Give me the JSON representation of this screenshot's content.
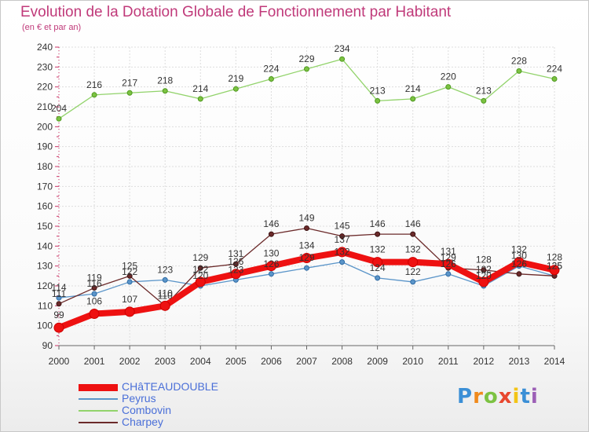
{
  "header": {
    "title": "Evolution de la Dotation Globale de Fonctionnement par Habitant",
    "subtitle": "(en € et par an)"
  },
  "logo": {
    "letters": [
      "P",
      "r",
      "o",
      "x",
      "i",
      "t",
      "i"
    ],
    "colors": [
      "#3b8fd6",
      "#f08a1c",
      "#7cc242",
      "#e8472f",
      "#f3c417",
      "#3b8fd6",
      "#9c5fb6"
    ]
  },
  "chart_data": {
    "type": "line",
    "title": "Evolution de la Dotation Globale de Fonctionnement par Habitant",
    "subtitle": "(en € et par an)",
    "xlabel": "",
    "ylabel": "",
    "ylim": [
      90,
      240
    ],
    "yticks": [
      90,
      100,
      110,
      120,
      130,
      140,
      150,
      160,
      170,
      180,
      190,
      200,
      210,
      220,
      230,
      240
    ],
    "categories": [
      "2000",
      "2001",
      "2002",
      "2003",
      "2004",
      "2005",
      "2006",
      "2007",
      "2008",
      "2009",
      "2010",
      "2011",
      "2012",
      "2013",
      "2014"
    ],
    "grid": true,
    "legend_position": "bottom-left",
    "series": [
      {
        "name": "CHâTEAUDOUBLE",
        "color": "#ee1111",
        "values": [
          99,
          106,
          107,
          110,
          122,
          126,
          130,
          134,
          137,
          132,
          132,
          131,
          122,
          132,
          128
        ]
      },
      {
        "name": "Peyrus",
        "color": "#5b95c9",
        "values": [
          114,
          116,
          122,
          123,
          120,
          123,
          126,
          129,
          132,
          124,
          122,
          126,
          120,
          130,
          125
        ]
      },
      {
        "name": "Combovin",
        "color": "#92d36b",
        "values": [
          204,
          216,
          217,
          218,
          214,
          219,
          224,
          229,
          234,
          213,
          214,
          220,
          213,
          228,
          224
        ]
      },
      {
        "name": "Charpey",
        "color": "#6b2a2a",
        "values": [
          111,
          119,
          125,
          110,
          129,
          131,
          146,
          149,
          145,
          146,
          146,
          129,
          128,
          126,
          125
        ]
      }
    ]
  }
}
